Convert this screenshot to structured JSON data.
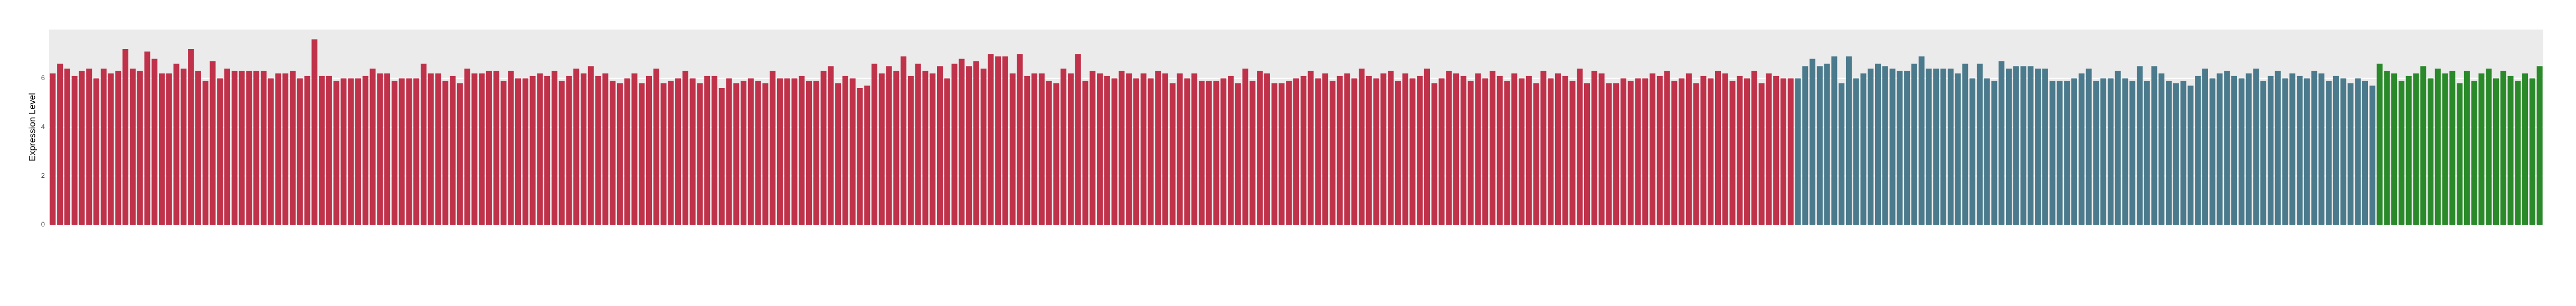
{
  "chart_data": {
    "type": "bar",
    "ylabel": "Expression Level",
    "ylim": [
      0,
      8
    ],
    "yticks": [
      0,
      2,
      4,
      6
    ],
    "grid": true,
    "series": [
      {
        "color": "#c0314a",
        "values": [
          6.2,
          6.6,
          6.4,
          6.1,
          6.3,
          6.4,
          6.0,
          6.4,
          6.2,
          6.3,
          7.2,
          6.4,
          6.3,
          7.1,
          6.8,
          6.2,
          6.2,
          6.6,
          6.4,
          7.2,
          6.3,
          5.9,
          6.7,
          6.0,
          6.4,
          6.3,
          6.3,
          6.3,
          6.3,
          6.3,
          6.0,
          6.2,
          6.2,
          6.3,
          6.0,
          6.1,
          7.6,
          6.1,
          6.1,
          5.9,
          6.0,
          6.0,
          6.0,
          6.1,
          6.4,
          6.2,
          6.2,
          5.9,
          6.0,
          6.0,
          6.0,
          6.6,
          6.2,
          6.2,
          5.9,
          6.1,
          5.8,
          6.4,
          6.2,
          6.2,
          6.3,
          6.3,
          5.9,
          6.3,
          6.0,
          6.0,
          6.1,
          6.2,
          6.1,
          6.3,
          5.9,
          6.1,
          6.4,
          6.2,
          6.5,
          6.1,
          6.2,
          5.9,
          5.8,
          6.0,
          6.2,
          5.8,
          6.1,
          6.4,
          5.8,
          5.9,
          6.0,
          6.3,
          6.0,
          5.8,
          6.1,
          6.1,
          5.6,
          6.0,
          5.8,
          5.9,
          6.0,
          5.9,
          5.8,
          6.3,
          6.0,
          6.0,
          6.0,
          6.1,
          5.9,
          5.9,
          6.3,
          6.5,
          5.8,
          6.1,
          6.0,
          5.6,
          5.7,
          6.6,
          6.2,
          6.5,
          6.3,
          6.9,
          6.1,
          6.6,
          6.3,
          6.2,
          6.5,
          6.0,
          6.6,
          6.8,
          6.5,
          6.7,
          6.4,
          7.0,
          6.9,
          6.9,
          6.2,
          7.0,
          6.1,
          6.2,
          6.2,
          5.9,
          5.8,
          6.4,
          6.2,
          7.0,
          5.9,
          6.3,
          6.2,
          6.1,
          6.0,
          6.3,
          6.2,
          6.0,
          6.2,
          6.0,
          6.3,
          6.2,
          5.8,
          6.2,
          6.0,
          6.2,
          5.9,
          5.9,
          5.9,
          6.0,
          6.1,
          5.8,
          6.4,
          5.9,
          6.3,
          6.2,
          5.8,
          5.8,
          5.9,
          6.0,
          6.1,
          6.3,
          6.0,
          6.2,
          5.9,
          6.1,
          6.2,
          6.0,
          6.4,
          6.1,
          6.0,
          6.2,
          6.3,
          5.9,
          6.2,
          6.0,
          6.1,
          6.4,
          5.8,
          6.0,
          6.3,
          6.2,
          6.1,
          5.9,
          6.2,
          6.0,
          6.3,
          6.1,
          5.9,
          6.2,
          6.0,
          6.1,
          5.8,
          6.3,
          6.0,
          6.2,
          6.1,
          5.9,
          6.4,
          5.8,
          6.3,
          6.2,
          5.8,
          5.8,
          6.0,
          5.9,
          6.0,
          6.0,
          6.2,
          6.1,
          6.3,
          5.9,
          6.0,
          6.2,
          5.8,
          6.1,
          6.0,
          6.3,
          6.2,
          5.9,
          6.1,
          6.0,
          6.3,
          5.8,
          6.2,
          6.1,
          6.0,
          6.0
        ]
      },
      {
        "color": "#4a7a8c",
        "values": [
          6.0,
          6.5,
          6.8,
          6.5,
          6.6,
          6.9,
          5.8,
          6.9,
          6.0,
          6.2,
          6.4,
          6.6,
          6.5,
          6.4,
          6.3,
          6.3,
          6.6,
          6.9,
          6.4,
          6.4,
          6.4,
          6.4,
          6.2,
          6.6,
          6.0,
          6.6,
          6.0,
          5.9,
          6.7,
          6.4,
          6.5,
          6.5,
          6.5,
          6.4,
          6.4,
          5.9,
          5.9,
          5.9,
          6.0,
          6.2,
          6.4,
          5.9,
          6.0,
          6.0,
          6.3,
          6.0,
          5.9,
          6.5,
          5.9,
          6.5,
          6.2,
          5.9,
          5.8,
          5.9,
          5.7,
          6.1,
          6.4,
          6.0,
          6.2,
          6.3,
          6.1,
          6.0,
          6.2,
          6.4,
          5.9,
          6.1,
          6.3,
          6.0,
          6.2,
          6.1,
          6.0,
          6.3,
          6.2,
          5.9,
          6.1,
          6.0,
          5.8,
          6.0,
          5.9,
          5.7
        ]
      },
      {
        "color": "#2a8a2a",
        "values": [
          6.6,
          6.3,
          6.2,
          5.9,
          6.1,
          6.2,
          6.5,
          6.0,
          6.4,
          6.2,
          6.3,
          5.8,
          6.3,
          5.9,
          6.2,
          6.4,
          6.0,
          6.3,
          6.1,
          5.9,
          6.2,
          6.0,
          6.5
        ]
      }
    ]
  }
}
